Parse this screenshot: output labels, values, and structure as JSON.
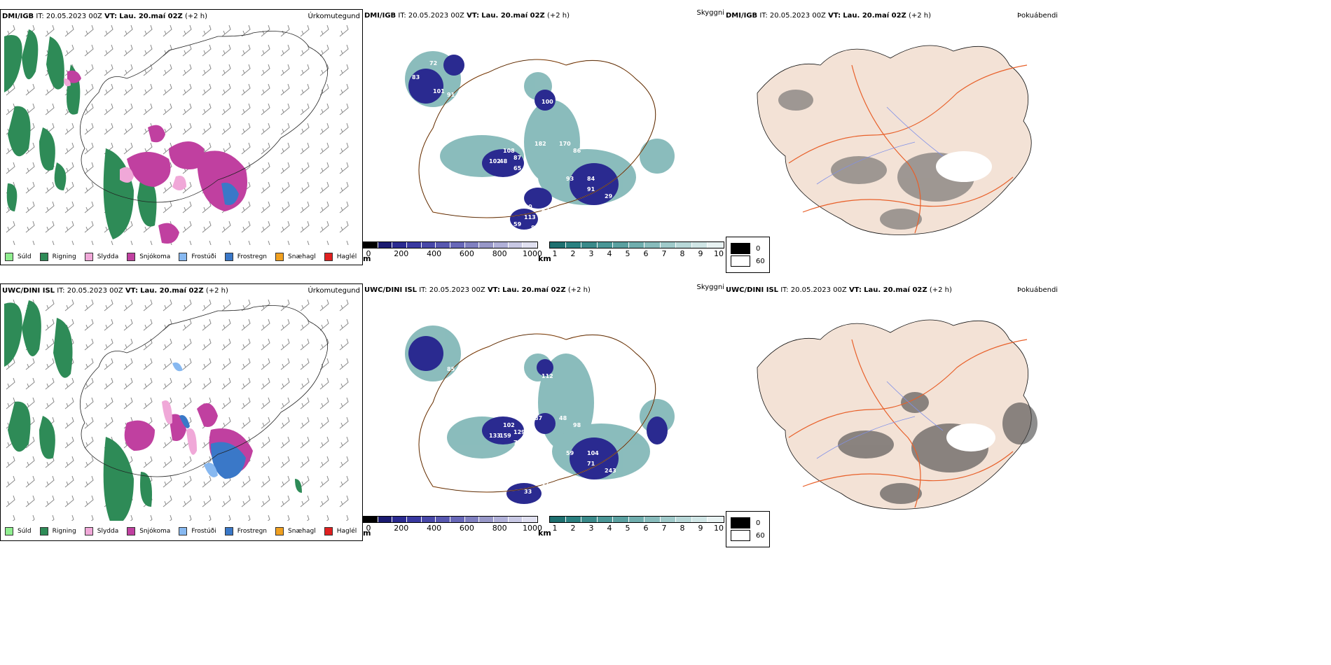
{
  "rows": [
    {
      "model": "DMI/IGB",
      "init_label": "IT:",
      "init_time": "20.05.2023 00Z",
      "valid_label": "VT:",
      "valid_time": "Lau. 20.maí 02Z",
      "offset": "(+2 h)",
      "precip_title": "Úrkomutegund",
      "vis_title": "Skyggni",
      "fog_title": "Þokuábendi"
    },
    {
      "model": "UWC/DINI ISL",
      "init_label": "IT:",
      "init_time": "20.05.2023 00Z",
      "valid_label": "VT:",
      "valid_time": "Lau. 20.maí 02Z",
      "offset": "(+2 h)",
      "precip_title": "Úrkomutegund",
      "vis_title": "Skyggni",
      "fog_title": "Þokuábendi"
    }
  ],
  "precip_legend": [
    {
      "label": "Súld",
      "color": "#90ee90"
    },
    {
      "label": "Rigning",
      "color": "#2e8b57"
    },
    {
      "label": "Slydda",
      "color": "#f0a8d8"
    },
    {
      "label": "Snjókoma",
      "color": "#c040a0"
    },
    {
      "label": "Frostúði",
      "color": "#87b8f0"
    },
    {
      "label": "Frostregn",
      "color": "#3a78c8"
    },
    {
      "label": "Snæhagl",
      "color": "#f0a020"
    },
    {
      "label": "Haglél",
      "color": "#e02020"
    }
  ],
  "ceiling_bar": {
    "unit": "m",
    "ticks": [
      "0",
      "200",
      "400",
      "600",
      "800",
      "1000"
    ],
    "colors": [
      "#000000",
      "#1a1a70",
      "#2a2a90",
      "#3838a0",
      "#4848a8",
      "#5858b0",
      "#6868b8",
      "#8080c0",
      "#9898c8",
      "#b0b0d8",
      "#c8c8e4",
      "#e0e0f0"
    ]
  },
  "vis_bar": {
    "unit": "km",
    "ticks": [
      "1",
      "2",
      "3",
      "4",
      "5",
      "6",
      "7",
      "8",
      "9",
      "10"
    ],
    "colors": [
      "#1e7070",
      "#2a8080",
      "#3a8a8a",
      "#4a9696",
      "#5aa0a0",
      "#70aeae",
      "#88bcbc",
      "#a0caca",
      "#b8d8d8",
      "#d0e6e6",
      "#e8f2f2"
    ]
  },
  "fog_legend": [
    {
      "label": "0",
      "color": "#000000"
    },
    {
      "label": "60",
      "color": "#ffffff"
    }
  ],
  "ceiling_labels_top": [
    "72",
    "83",
    "101",
    "91",
    "100",
    "108",
    "182",
    "87",
    "170",
    "86",
    "102",
    "48",
    "65",
    "113",
    "93",
    "84",
    "91",
    "29",
    "110",
    "82",
    "113",
    "85",
    "59"
  ],
  "ceiling_labels_bottom": [
    "85",
    "112",
    "102",
    "87",
    "129",
    "48",
    "98",
    "133",
    "159",
    "72",
    "581",
    "59",
    "104",
    "71",
    "243",
    "52",
    "31",
    "33"
  ],
  "colors": {
    "rain": "#2e8b57",
    "snow": "#c040a0",
    "sleet": "#f0a8d8",
    "freezing_rain": "#3a78c8",
    "freezing_drizzle": "#87b8f0",
    "ceiling": "#2a2a90",
    "visibility": "#3a8a8a",
    "roads": "#e8883a",
    "land": "#f3e2d6",
    "rivers": "#8090e8"
  }
}
